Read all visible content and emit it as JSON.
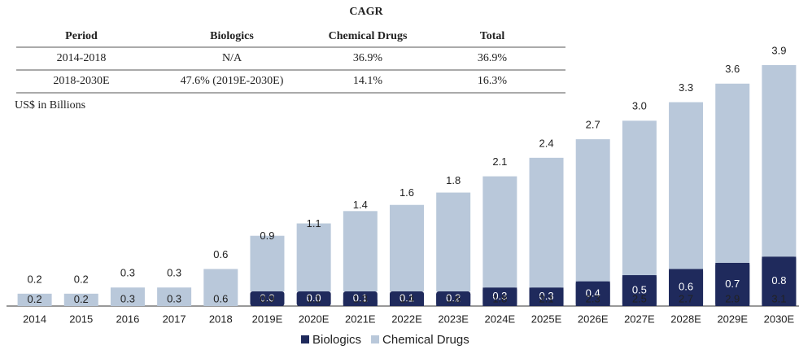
{
  "table": {
    "title": "CAGR",
    "headers": [
      "Period",
      "Biologics",
      "Chemical Drugs",
      "Total"
    ],
    "rows": [
      [
        "2014-2018",
        "N/A",
        "36.9%",
        "36.9%"
      ],
      [
        "2018-2030E",
        "47.6% (2019E-2030E)",
        "14.1%",
        "16.3%"
      ]
    ]
  },
  "chart_data": {
    "type": "stacked_bar",
    "subtitle": "US$ in Billions",
    "categories": [
      "2014",
      "2015",
      "2016",
      "2017",
      "2018",
      "2019E",
      "2020E",
      "2021E",
      "2022E",
      "2023E",
      "2024E",
      "2025E",
      "2026E",
      "2027E",
      "2028E",
      "2029E",
      "2030E"
    ],
    "series": [
      {
        "name": "Biologics",
        "color": "#1f2a5c",
        "values": [
          null,
          null,
          null,
          null,
          null,
          0.0,
          0.0,
          0.1,
          0.1,
          0.2,
          0.3,
          0.3,
          0.4,
          0.5,
          0.6,
          0.7,
          0.8
        ]
      },
      {
        "name": "Chemical Drugs",
        "color": "#b9c8da",
        "values": [
          0.2,
          0.2,
          0.3,
          0.3,
          0.6,
          0.9,
          1.1,
          1.3,
          1.4,
          1.6,
          1.8,
          2.1,
          2.3,
          2.5,
          2.7,
          2.9,
          3.1
        ]
      }
    ],
    "totals": [
      0.2,
      0.2,
      0.3,
      0.3,
      0.6,
      0.9,
      1.1,
      1.4,
      1.6,
      1.8,
      2.1,
      2.4,
      2.7,
      3.0,
      3.3,
      3.6,
      3.9
    ]
  }
}
